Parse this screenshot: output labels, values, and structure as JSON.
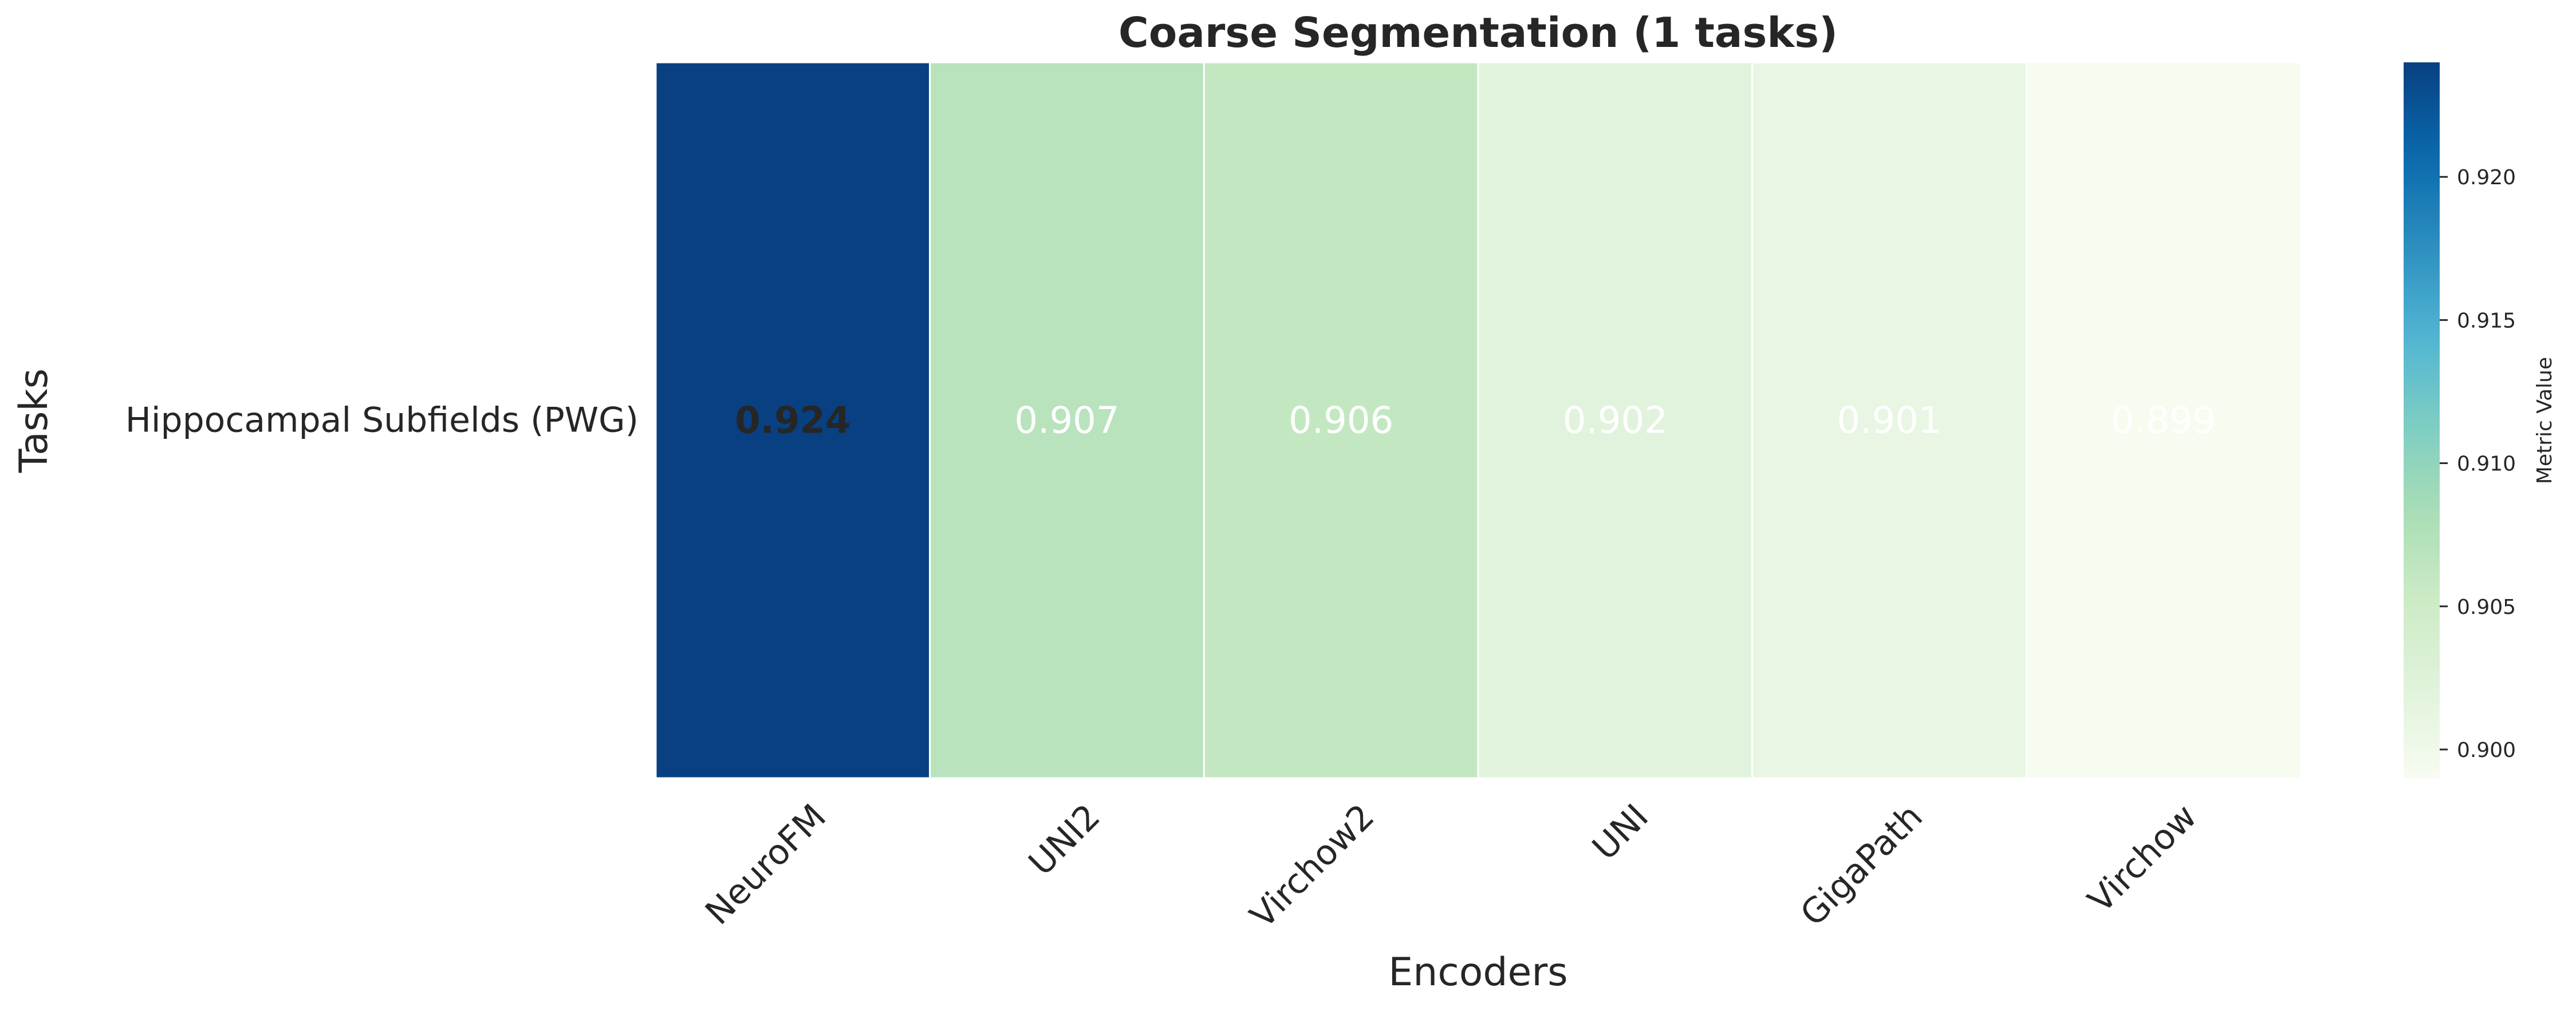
{
  "chart_data": {
    "type": "heatmap",
    "title": "Coarse Segmentation (1 tasks)",
    "xlabel": "Encoders",
    "ylabel": "Tasks",
    "rows": [
      "Hippocampal Subfields (PWG)"
    ],
    "columns": [
      "NeuroFM",
      "UNI2",
      "Virchow2",
      "UNI",
      "GigaPath",
      "Virchow"
    ],
    "values": [
      [
        0.924,
        0.907,
        0.906,
        0.902,
        0.901,
        0.899
      ]
    ],
    "value_labels": [
      [
        "0.924",
        "0.907",
        "0.906",
        "0.902",
        "0.901",
        "0.899"
      ]
    ],
    "best_bold": "0.924",
    "colormap": "GnBu",
    "vmin": 0.899,
    "vmax": 0.924,
    "colorbar": {
      "label": "Metric Value",
      "ticks": [
        0.9,
        0.905,
        0.91,
        0.915,
        0.92
      ],
      "tick_labels": [
        "0.900",
        "0.905",
        "0.910",
        "0.915",
        "0.920"
      ]
    },
    "cell_border_color": "#ffffff",
    "annotation_colors": {
      "light_cell": "#262626",
      "dark_cell": "#ffffff"
    }
  }
}
